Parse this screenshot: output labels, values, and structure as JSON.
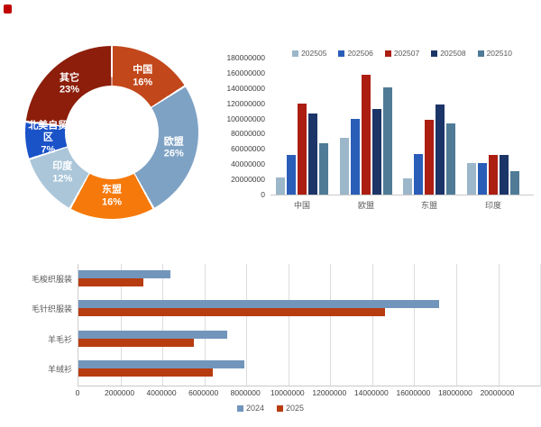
{
  "marker": {
    "color": "#c00000"
  },
  "chart_data": [
    {
      "type": "pie",
      "name": "region-share-donut",
      "title": "",
      "slices": [
        {
          "label": "中国",
          "pct": 16,
          "color": "#C2471B"
        },
        {
          "label": "欧盟",
          "pct": 26,
          "color": "#7EA2C4"
        },
        {
          "label": "东盟",
          "pct": 16,
          "color": "#F5790B"
        },
        {
          "label": "印度",
          "pct": 12,
          "color": "#ABC6D9"
        },
        {
          "label": "北美自贸区",
          "pct": 7,
          "color": "#1A52C8"
        },
        {
          "label": "其它",
          "pct": 23,
          "color": "#8C1E0B"
        }
      ],
      "label_format": "name + percent",
      "legend": "none"
    },
    {
      "type": "bar",
      "name": "monthly-exports-by-region",
      "title": "",
      "categories": [
        "中国",
        "欧盟",
        "东盟",
        "印度"
      ],
      "series": [
        {
          "name": "202505",
          "color": "#9BB7C9",
          "values": [
            23000000,
            75000000,
            21000000,
            42000000
          ]
        },
        {
          "name": "202506",
          "color": "#2A5DB8",
          "values": [
            52000000,
            100000000,
            53000000,
            42000000
          ]
        },
        {
          "name": "202507",
          "color": "#AC1E12",
          "values": [
            120000000,
            157000000,
            98000000,
            52000000
          ]
        },
        {
          "name": "202508",
          "color": "#1C3568",
          "values": [
            107000000,
            112000000,
            118000000,
            52000000
          ]
        },
        {
          "name": "202510",
          "color": "#4F7B97",
          "values": [
            67000000,
            141000000,
            94000000,
            31000000
          ]
        }
      ],
      "ylim": [
        0,
        180000000
      ],
      "ytick_step": 20000000,
      "grid": "off",
      "legend_position": "top"
    },
    {
      "type": "bar",
      "orientation": "horizontal",
      "name": "product-exports-year-comparison",
      "title": "",
      "categories": [
        "毛梭织服装",
        "毛针织服装",
        "羊毛衫",
        "羊绒衫"
      ],
      "series": [
        {
          "name": "2024",
          "color": "#7295BC",
          "values": [
            4400000,
            17200000,
            7100000,
            7900000
          ]
        },
        {
          "name": "2025",
          "color": "#B73C10",
          "values": [
            3100000,
            14600000,
            5500000,
            6400000
          ]
        }
      ],
      "xlim": [
        0,
        20000000
      ],
      "xtick_step": 2000000,
      "grid": "vertical",
      "legend_position": "bottom"
    }
  ]
}
